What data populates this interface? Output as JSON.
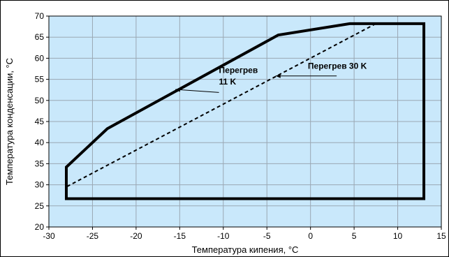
{
  "chart_data": {
    "type": "line",
    "title": "",
    "xlabel": "Температура кипения, °C",
    "ylabel": "Температура конденсации, °C",
    "xlim": [
      -30,
      15
    ],
    "ylim": [
      20,
      70
    ],
    "x_ticks": [
      -30,
      -25,
      -20,
      -15,
      -10,
      -5,
      0,
      5,
      10,
      15
    ],
    "y_ticks": [
      20,
      25,
      30,
      35,
      40,
      45,
      50,
      55,
      60,
      65,
      70
    ],
    "x_tick_labels": [
      "-30",
      "-25",
      "-20",
      "-15",
      "-10",
      "-5",
      "0",
      "5",
      "10",
      "15"
    ],
    "y_tick_labels": [
      "20",
      "25",
      "30",
      "35",
      "40",
      "45",
      "50",
      "55",
      "60",
      "65",
      "70"
    ],
    "grid": true,
    "legend": "none",
    "series": [
      {
        "style": "solid",
        "closed": true,
        "x": [
          -28,
          -28,
          -23.3,
          -3.7,
          4.5,
          13,
          13,
          -28
        ],
        "y": [
          26.7,
          34.2,
          43.3,
          65.5,
          68.2,
          68.2,
          26.7,
          26.7
        ]
      },
      {
        "style": "dashed",
        "x": [
          -28,
          -28,
          7.5
        ],
        "y": [
          26.7,
          29.5,
          68.2
        ]
      }
    ],
    "annotations": [
      {
        "text": "Перегрев",
        "x": -10.5,
        "y": 56.5
      },
      {
        "text": "11 K",
        "x": -10.5,
        "y": 53.8
      },
      {
        "text": "Перегрев 30 K",
        "x": -0.3,
        "y": 57.5
      }
    ],
    "annotation_arrows": [
      {
        "x1": -10.5,
        "y1": 51.9,
        "x2": -15.5,
        "y2": 52.6
      },
      {
        "x1": 3,
        "y1": 55.8,
        "x2": -4,
        "y2": 55.8
      }
    ],
    "colors": {
      "plot_background": "#c9e8fb",
      "grid": "#9aa7b3",
      "outline": "#000000"
    }
  }
}
